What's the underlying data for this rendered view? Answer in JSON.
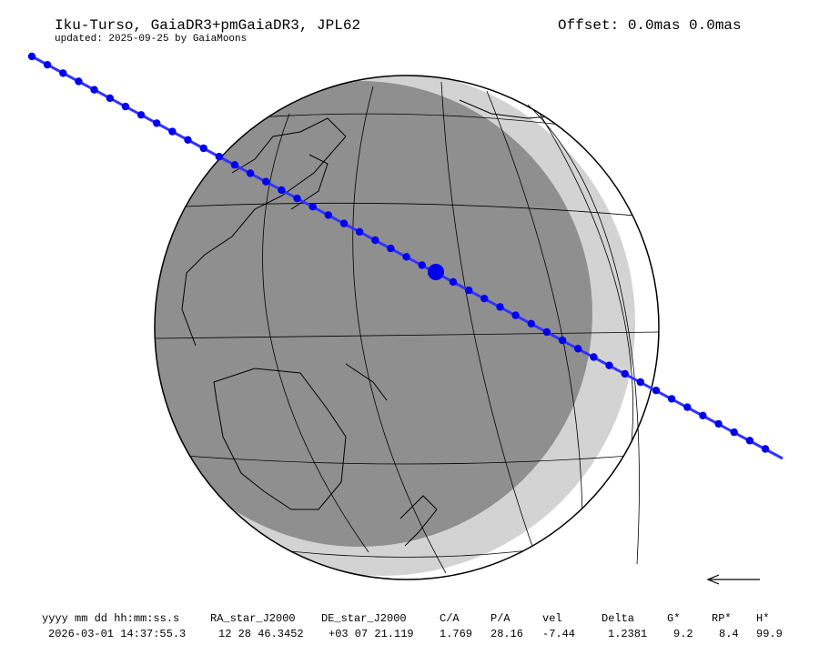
{
  "header": {
    "title": "Iku-Turso, GaiaDR3+pmGaiaDR3, JPL62",
    "subtitle": "updated: 2025-09-25 by GaiaMoons",
    "offset": "Offset: 0.0mas 0.0mas"
  },
  "table": {
    "columns": [
      "yyyy mm dd hh:mm:ss.s",
      "RA_star_J2000",
      "DE_star_J2000",
      "C/A",
      "P/A",
      "vel",
      "Delta",
      "G*",
      "RP*",
      "H*"
    ],
    "values": [
      "2026-03-01 14:37:55.3",
      "12 28 46.3452",
      "+03 07 21.119",
      "1.769",
      "28.16",
      "-7.44",
      "1.2381",
      "9.2",
      "8.4",
      "99.9"
    ]
  },
  "colors": {
    "path": "#3333ff",
    "path_dots": "#0000ee",
    "night": "#8f8f8f",
    "twilight": "#d3d3d3",
    "globe_outline": "#000000"
  },
  "icons": {
    "direction": "arrow-left-icon"
  }
}
